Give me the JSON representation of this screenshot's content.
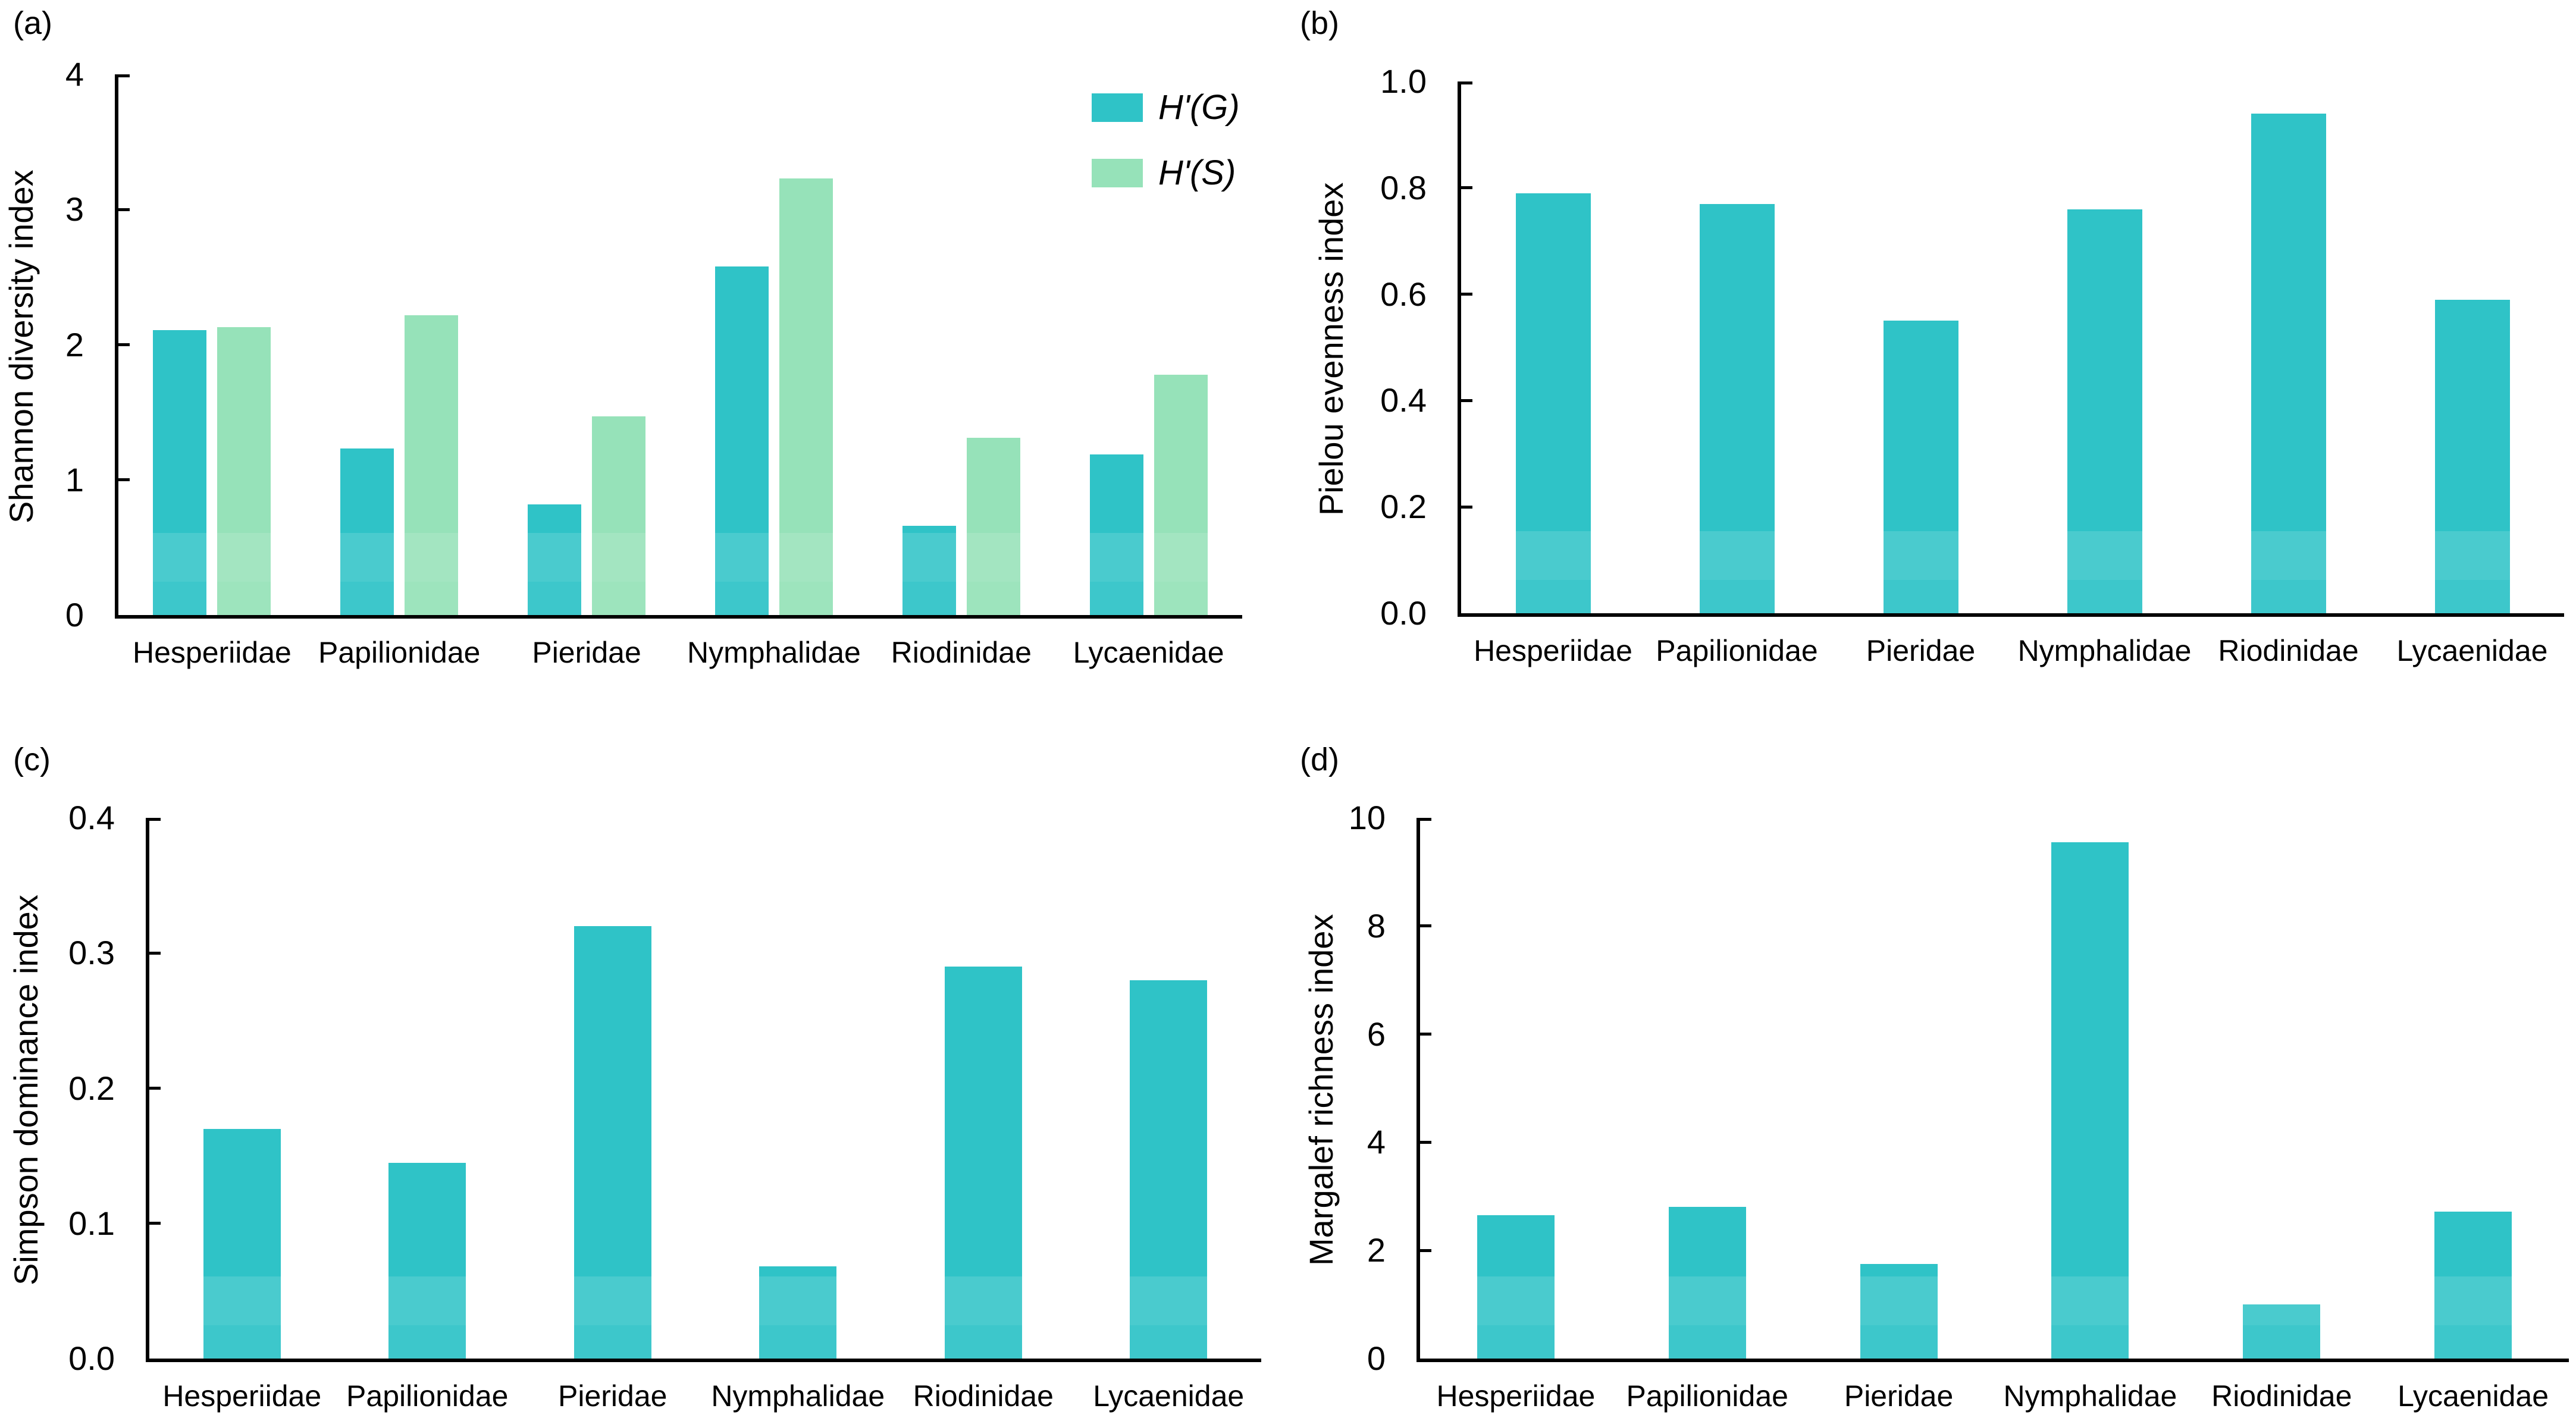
{
  "figure_title": "",
  "accent_colors": {
    "teal": "#2fc3c7",
    "mint_green": "#96e2b9"
  },
  "chart_data": [
    {
      "panel": "(a)",
      "type": "bar",
      "categories": [
        "Hesperiidae",
        "Papilionidae",
        "Pieridae",
        "Nymphalidae",
        "Riodinidae",
        "Lycaenidae"
      ],
      "series": [
        {
          "name": "H'(G)",
          "color": "#2fc3c7",
          "values": [
            2.11,
            1.23,
            0.82,
            2.58,
            0.66,
            1.19
          ]
        },
        {
          "name": "H'(S)",
          "color": "#96e2b9",
          "values": [
            2.13,
            2.22,
            1.47,
            3.23,
            1.31,
            1.78
          ]
        }
      ],
      "xlabel": "",
      "ylabel": "Shannon diversity index",
      "ylim": [
        0,
        4
      ],
      "yticks": [
        0,
        1,
        2,
        3,
        4
      ],
      "ytick_labels": [
        "0",
        "1",
        "2",
        "3",
        "4"
      ],
      "grid": false,
      "legend_position": "top-right"
    },
    {
      "panel": "(b)",
      "type": "bar",
      "categories": [
        "Hesperiidae",
        "Papilionidae",
        "Pieridae",
        "Nymphalidae",
        "Riodinidae",
        "Lycaenidae"
      ],
      "series": [
        {
          "name": "",
          "color": "#2fc3c7",
          "values": [
            0.79,
            0.77,
            0.55,
            0.76,
            0.94,
            0.59
          ]
        }
      ],
      "xlabel": "",
      "ylabel": "Pielou evenness index",
      "ylim": [
        0,
        1.0
      ],
      "yticks": [
        0,
        0.2,
        0.4,
        0.6,
        0.8,
        1.0
      ],
      "ytick_labels": [
        "0.0",
        "0.2",
        "0.4",
        "0.6",
        "0.8",
        "1.0"
      ],
      "grid": false,
      "legend_position": "none"
    },
    {
      "panel": "(c)",
      "type": "bar",
      "categories": [
        "Hesperiidae",
        "Papilionidae",
        "Pieridae",
        "Nymphalidae",
        "Riodinidae",
        "Lycaenidae"
      ],
      "series": [
        {
          "name": "",
          "color": "#2fc3c7",
          "values": [
            0.17,
            0.145,
            0.32,
            0.068,
            0.29,
            0.28
          ]
        }
      ],
      "xlabel": "",
      "ylabel": "Simpson dominance index",
      "ylim": [
        0,
        0.4
      ],
      "yticks": [
        0,
        0.1,
        0.2,
        0.3,
        0.4
      ],
      "ytick_labels": [
        "0.0",
        "0.1",
        "0.2",
        "0.3",
        "0.4"
      ],
      "grid": false,
      "legend_position": "none"
    },
    {
      "panel": "(d)",
      "type": "bar",
      "categories": [
        "Hesperiidae",
        "Papilionidae",
        "Pieridae",
        "Nymphalidae",
        "Riodinidae",
        "Lycaenidae"
      ],
      "series": [
        {
          "name": "",
          "color": "#2fc3c7",
          "values": [
            2.65,
            2.8,
            1.75,
            9.55,
            1.0,
            2.72
          ]
        }
      ],
      "xlabel": "",
      "ylabel": "Margalef richness index",
      "ylim": [
        0,
        10
      ],
      "yticks": [
        0,
        2,
        4,
        6,
        8,
        10
      ],
      "ytick_labels": [
        "0",
        "2",
        "4",
        "6",
        "8",
        "10"
      ],
      "grid": false,
      "legend_position": "none"
    }
  ]
}
